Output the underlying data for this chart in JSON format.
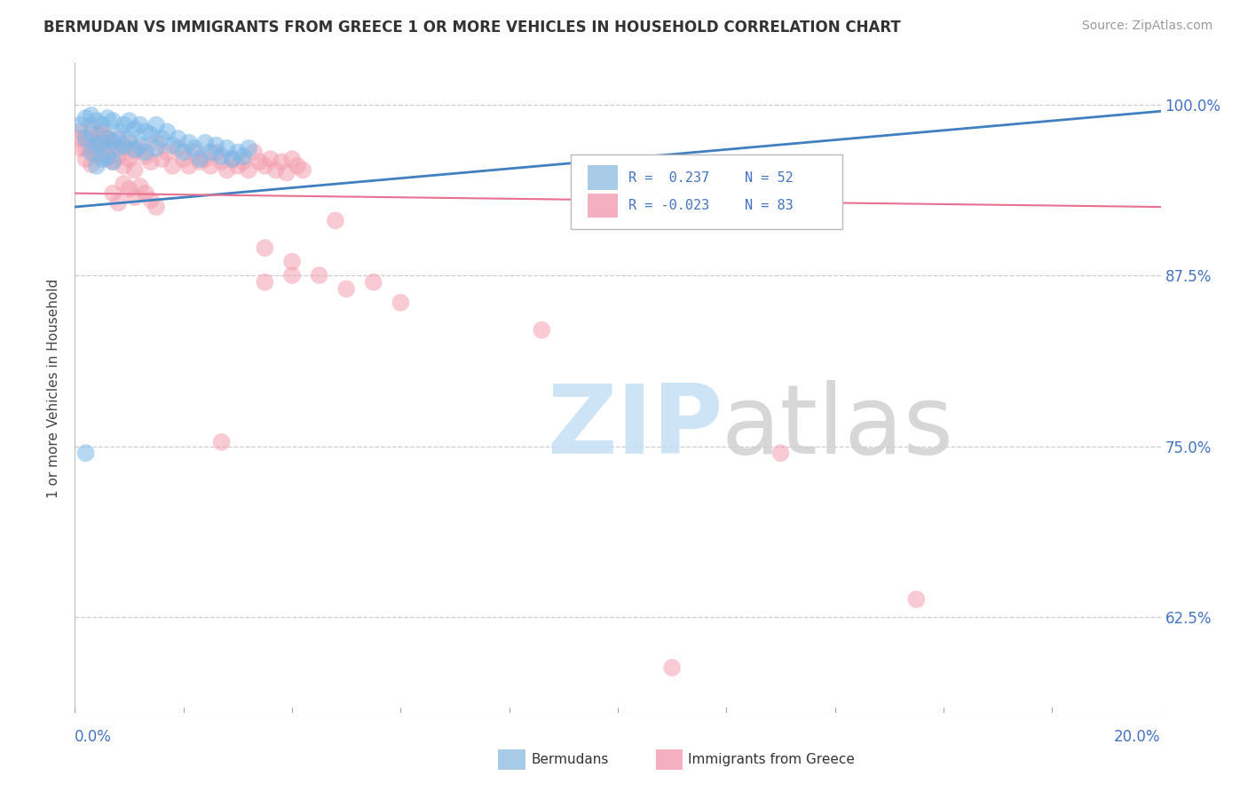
{
  "title": "BERMUDAN VS IMMIGRANTS FROM GREECE 1 OR MORE VEHICLES IN HOUSEHOLD CORRELATION CHART",
  "source": "Source: ZipAtlas.com",
  "ylabel": "1 or more Vehicles in Household",
  "ytick_labels": [
    "62.5%",
    "75.0%",
    "87.5%",
    "100.0%"
  ],
  "ytick_values": [
    0.625,
    0.75,
    0.875,
    1.0
  ],
  "xlim": [
    0.0,
    0.2
  ],
  "ylim": [
    0.555,
    1.03
  ],
  "legend_blue_label1": "R =  0.237",
  "legend_blue_label2": "N = 52",
  "legend_pink_label1": "R = -0.023",
  "legend_pink_label2": "N = 83",
  "legend_bottom_blue": "Bermudans",
  "legend_bottom_pink": "Immigrants from Greece",
  "blue_color": "#7ab8e8",
  "pink_color": "#f4a0b0",
  "blue_line_color": "#4080c0",
  "pink_line_color": "#e87090",
  "blue_R": 0.237,
  "pink_R": -0.023,
  "blue_line_x0": 0.0,
  "blue_line_y0": 0.925,
  "blue_line_x1": 0.2,
  "blue_line_y1": 0.995,
  "pink_line_x0": 0.0,
  "pink_line_y0": 0.935,
  "pink_line_x1": 0.2,
  "pink_line_y1": 0.925,
  "blue_dots_x": [
    0.001,
    0.002,
    0.002,
    0.003,
    0.003,
    0.003,
    0.004,
    0.004,
    0.004,
    0.005,
    0.005,
    0.005,
    0.006,
    0.006,
    0.006,
    0.007,
    0.007,
    0.007,
    0.008,
    0.008,
    0.009,
    0.009,
    0.01,
    0.01,
    0.011,
    0.011,
    0.012,
    0.012,
    0.013,
    0.013,
    0.014,
    0.015,
    0.015,
    0.016,
    0.017,
    0.018,
    0.019,
    0.02,
    0.021,
    0.022,
    0.023,
    0.024,
    0.025,
    0.026,
    0.027,
    0.028,
    0.029,
    0.03,
    0.031,
    0.032,
    0.115,
    0.002
  ],
  "blue_dots_y": [
    0.985,
    0.99,
    0.975,
    0.992,
    0.978,
    0.965,
    0.988,
    0.97,
    0.955,
    0.985,
    0.972,
    0.96,
    0.99,
    0.975,
    0.962,
    0.988,
    0.973,
    0.958,
    0.98,
    0.968,
    0.985,
    0.97,
    0.988,
    0.975,
    0.982,
    0.967,
    0.985,
    0.97,
    0.98,
    0.965,
    0.978,
    0.985,
    0.968,
    0.975,
    0.98,
    0.97,
    0.975,
    0.965,
    0.972,
    0.968,
    0.96,
    0.972,
    0.965,
    0.97,
    0.962,
    0.968,
    0.96,
    0.965,
    0.962,
    0.968,
    0.938,
    0.745
  ],
  "pink_dots_x": [
    0.001,
    0.001,
    0.002,
    0.002,
    0.003,
    0.003,
    0.003,
    0.004,
    0.004,
    0.005,
    0.005,
    0.006,
    0.006,
    0.007,
    0.007,
    0.008,
    0.008,
    0.009,
    0.009,
    0.01,
    0.01,
    0.011,
    0.011,
    0.012,
    0.013,
    0.014,
    0.015,
    0.016,
    0.017,
    0.018,
    0.019,
    0.02,
    0.021,
    0.022,
    0.023,
    0.024,
    0.025,
    0.026,
    0.027,
    0.028,
    0.029,
    0.03,
    0.031,
    0.032,
    0.033,
    0.034,
    0.035,
    0.036,
    0.037,
    0.038,
    0.039,
    0.04,
    0.041,
    0.042,
    0.001,
    0.002,
    0.003,
    0.004,
    0.005,
    0.006,
    0.035,
    0.04,
    0.055,
    0.035,
    0.04,
    0.045,
    0.05,
    0.06,
    0.007,
    0.008,
    0.048,
    0.086,
    0.13,
    0.009,
    0.01,
    0.011,
    0.012,
    0.013,
    0.014,
    0.015,
    0.155,
    0.027,
    0.11
  ],
  "pink_dots_y": [
    0.98,
    0.968,
    0.975,
    0.96,
    0.985,
    0.97,
    0.956,
    0.978,
    0.963,
    0.98,
    0.965,
    0.975,
    0.96,
    0.97,
    0.958,
    0.975,
    0.962,
    0.968,
    0.955,
    0.972,
    0.96,
    0.965,
    0.952,
    0.968,
    0.962,
    0.958,
    0.972,
    0.96,
    0.965,
    0.955,
    0.968,
    0.96,
    0.955,
    0.965,
    0.958,
    0.96,
    0.955,
    0.965,
    0.958,
    0.952,
    0.96,
    0.955,
    0.958,
    0.952,
    0.965,
    0.958,
    0.955,
    0.96,
    0.952,
    0.958,
    0.95,
    0.96,
    0.955,
    0.952,
    0.975,
    0.968,
    0.972,
    0.965,
    0.978,
    0.97,
    0.87,
    0.875,
    0.87,
    0.895,
    0.885,
    0.875,
    0.865,
    0.855,
    0.935,
    0.928,
    0.915,
    0.835,
    0.745,
    0.942,
    0.938,
    0.932,
    0.94,
    0.935,
    0.93,
    0.925,
    0.638,
    0.753,
    0.588
  ]
}
